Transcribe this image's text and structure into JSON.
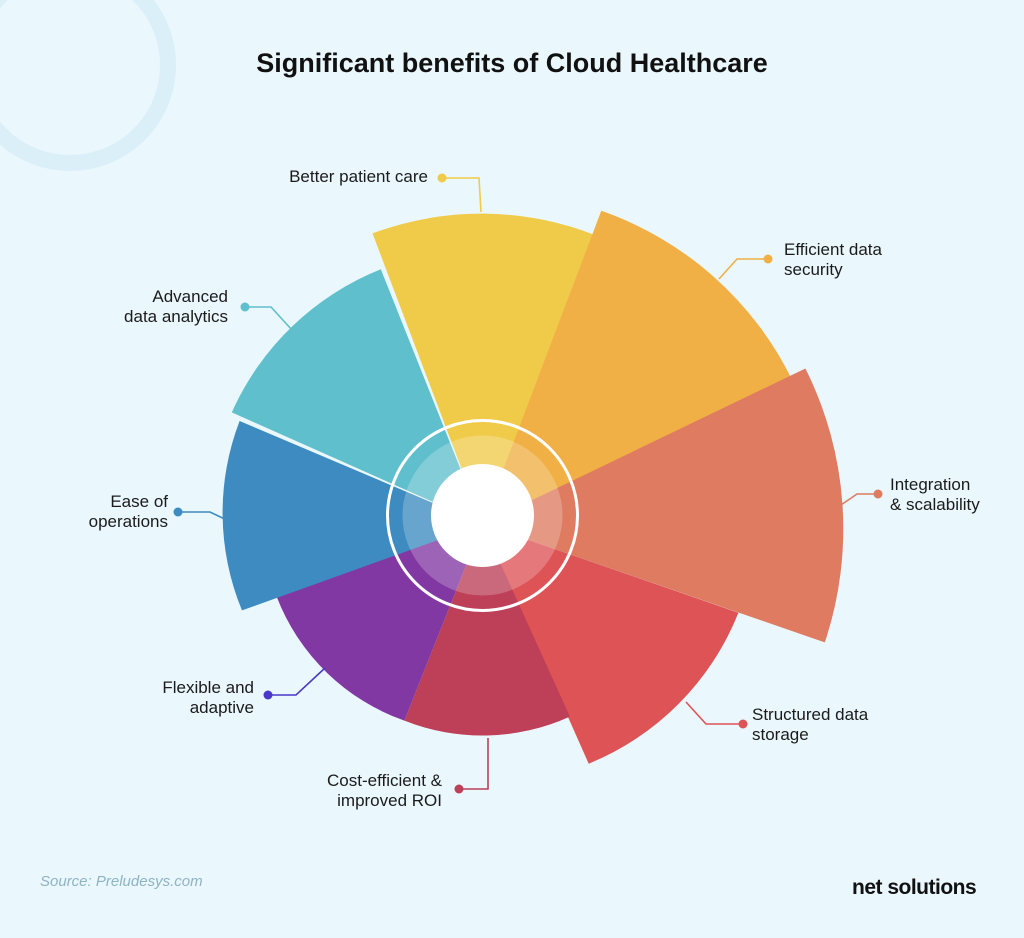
{
  "title": "Significant benefits of Cloud Healthcare",
  "segments": [
    {
      "id": "better-patient-care",
      "lines": [
        "Better patient care"
      ],
      "color": "#f0cb4a"
    },
    {
      "id": "efficient-data-security",
      "lines": [
        "Efficient data",
        "security"
      ],
      "color": "#f0b045"
    },
    {
      "id": "integration-scalability",
      "lines": [
        "Integration",
        "& scalability"
      ],
      "color": "#de7b60"
    },
    {
      "id": "structured-data-storage",
      "lines": [
        "Structured data",
        "storage"
      ],
      "color": "#de5355"
    },
    {
      "id": "cost-efficient-roi",
      "lines": [
        "Cost-efficient &",
        "improved ROI"
      ],
      "color": "#bd3f58"
    },
    {
      "id": "flexible-adaptive",
      "lines": [
        "Flexible and",
        "adaptive"
      ],
      "color": "#8238a2"
    },
    {
      "id": "ease-of-operations",
      "lines": [
        "Ease of",
        "operations"
      ],
      "color": "#3d8bc0"
    },
    {
      "id": "advanced-data-analytics",
      "lines": [
        "Advanced",
        "data analytics"
      ],
      "color": "#5fbfcc"
    }
  ],
  "source": "Source: Preludesys.com",
  "brand": "net solutions"
}
